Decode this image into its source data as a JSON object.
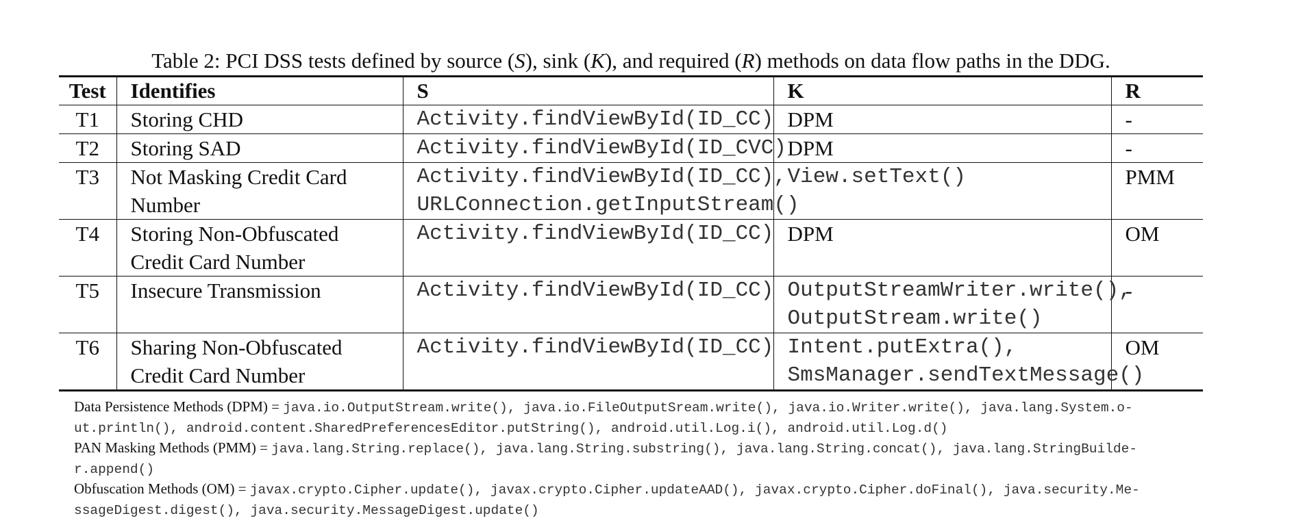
{
  "caption": {
    "prefix": "Table 2: PCI DSS tests defined by source (",
    "s_symbol": "S",
    "part2": "), sink (",
    "k_symbol": "K",
    "part3": "), and required (",
    "r_symbol": "R",
    "suffix": ") methods on data flow paths in the DDG."
  },
  "table": {
    "headers": [
      "Test",
      "Identifies",
      "S",
      "K",
      "R"
    ],
    "rows": [
      {
        "test": "T1",
        "identifies": "Storing CHD",
        "s": [
          "Activity.findViewById(ID_CC)"
        ],
        "k": [
          "DPM"
        ],
        "k_mono": false,
        "r": "-"
      },
      {
        "test": "T2",
        "identifies": "Storing SAD",
        "s": [
          "Activity.findViewById(ID_CVC)"
        ],
        "k": [
          "DPM"
        ],
        "k_mono": false,
        "r": "-"
      },
      {
        "test": "T3",
        "identifies": "Not Masking Credit Card Number",
        "s": [
          "Activity.findViewById(ID_CC),",
          "URLConnection.getInputStream()"
        ],
        "k": [
          "View.setText()"
        ],
        "k_mono": true,
        "r": "PMM"
      },
      {
        "test": "T4",
        "identifies": "Storing Non-Obfuscated Credit Card Number",
        "s": [
          "Activity.findViewById(ID_CC)"
        ],
        "k": [
          "DPM"
        ],
        "k_mono": false,
        "r": "OM"
      },
      {
        "test": "T5",
        "identifies": "Insecure Transmission",
        "s": [
          "Activity.findViewById(ID_CC)"
        ],
        "k": [
          "OutputStreamWriter.write(),",
          "OutputStream.write()"
        ],
        "k_mono": true,
        "r": "-"
      },
      {
        "test": "T6",
        "identifies": "Sharing Non-Obfuscated Credit Card Number",
        "s": [
          "Activity.findViewById(ID_CC)"
        ],
        "k": [
          "Intent.putExtra(),",
          "SmsManager.sendTextMessage()"
        ],
        "k_mono": true,
        "r": "OM"
      }
    ]
  },
  "notes": [
    {
      "label": "Data Persistence Methods (DPM) = ",
      "lines": [
        "java.io.OutputStream.write(), java.io.FileOutputSream.write(), java.io.Writer.write(), java.lang.System.o-",
        "ut.println(), android.content.SharedPreferencesEditor.putString(), android.util.Log.i(), android.util.Log.d()"
      ]
    },
    {
      "label": "PAN Masking Methods (PMM) = ",
      "lines": [
        "java.lang.String.replace(), java.lang.String.substring(), java.lang.String.concat(), java.lang.StringBuilde-",
        "r.append()"
      ]
    },
    {
      "label": "Obfuscation Methods (OM) = ",
      "lines": [
        "javax.crypto.Cipher.update(), javax.crypto.Cipher.updateAAD(), javax.crypto.Cipher.doFinal(), java.security.Me-",
        "ssageDigest.digest(), java.security.MessageDigest.update()"
      ]
    }
  ]
}
